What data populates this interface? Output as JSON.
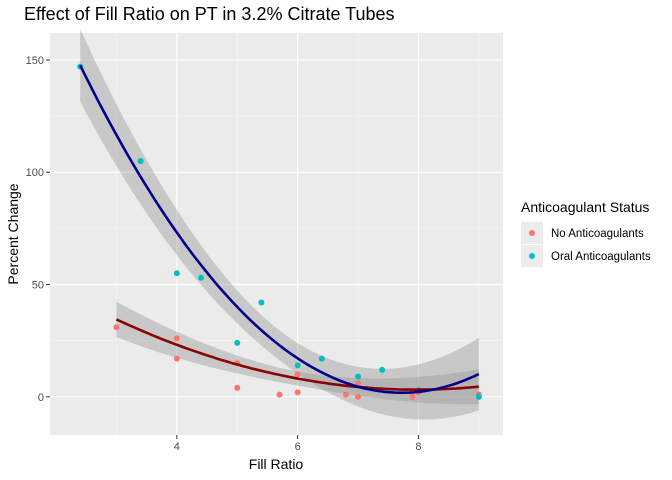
{
  "chart_data": {
    "type": "scatter",
    "title": "Effect of Fill Ratio on PT in 3.2% Citrate Tubes",
    "xlabel": "Fill Ratio",
    "ylabel": "Percent Change",
    "xlim": [
      1.9,
      9.4
    ],
    "ylim": [
      -17,
      162
    ],
    "x_ticks": [
      4,
      6,
      8
    ],
    "y_ticks": [
      0,
      50,
      100,
      150
    ],
    "x_tick_labels": [
      "4",
      "6",
      "8"
    ],
    "y_tick_labels": [
      "0",
      "50",
      "100",
      "150"
    ],
    "grid": true,
    "legend": {
      "title": "Anticoagulant Status",
      "placement": "right"
    },
    "series": [
      {
        "name": "No Anticoagulants",
        "color": "#F8766D",
        "trend_color": "#8B0000",
        "points": [
          {
            "x": 3,
            "y": 31
          },
          {
            "x": 4,
            "y": 26
          },
          {
            "x": 4,
            "y": 17
          },
          {
            "x": 5,
            "y": 15
          },
          {
            "x": 5,
            "y": 4
          },
          {
            "x": 5.7,
            "y": 1
          },
          {
            "x": 6,
            "y": 10
          },
          {
            "x": 6,
            "y": 2
          },
          {
            "x": 6.8,
            "y": 1
          },
          {
            "x": 7,
            "y": 6
          },
          {
            "x": 7,
            "y": 0
          },
          {
            "x": 7.9,
            "y": 0
          },
          {
            "x": 8,
            "y": 2
          },
          {
            "x": 9,
            "y": 1
          }
        ],
        "trend": {
          "x_range": [
            3,
            9
          ],
          "coefficients": [
            83.56,
            -20.15,
            1.263
          ]
        }
      },
      {
        "name": "Oral Anticoagulants",
        "color": "#00BFC4",
        "trend_color": "#00008B",
        "points": [
          {
            "x": 2.4,
            "y": 147
          },
          {
            "x": 3.4,
            "y": 105
          },
          {
            "x": 4,
            "y": 55
          },
          {
            "x": 4.4,
            "y": 53
          },
          {
            "x": 5,
            "y": 24
          },
          {
            "x": 5.4,
            "y": 42
          },
          {
            "x": 6,
            "y": 14
          },
          {
            "x": 6.4,
            "y": 17
          },
          {
            "x": 7,
            "y": 9
          },
          {
            "x": 7.4,
            "y": 12
          },
          {
            "x": 8,
            "y": 3
          },
          {
            "x": 9,
            "y": 0
          }
        ],
        "trend": {
          "x_range": [
            2.4,
            9
          ],
          "coefficients": [
            308.6,
            -79.42,
            5.14
          ]
        }
      }
    ]
  }
}
